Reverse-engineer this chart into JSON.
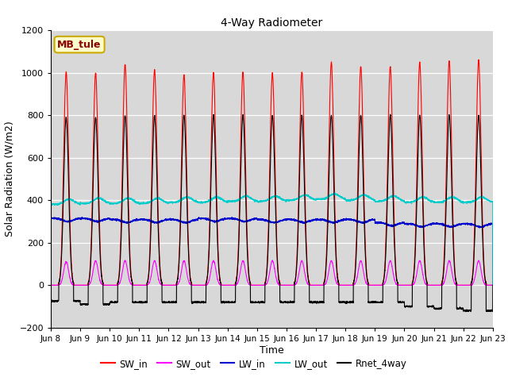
{
  "title": "4-Way Radiometer",
  "xlabel": "Time",
  "ylabel": "Solar Radiation (W/m2)",
  "ylim": [
    -200,
    1200
  ],
  "station_label": "MB_tule",
  "legend_entries": [
    "SW_in",
    "SW_out",
    "LW_in",
    "LW_out",
    "Rnet_4way"
  ],
  "line_colors": [
    "#ff0000",
    "#ff00ff",
    "#0000cc",
    "#00cccc",
    "#000000"
  ],
  "background_color": "#ffffff",
  "plot_bg_color": "#d8d8d8",
  "x_tick_labels": [
    "Jun 8",
    "Jun 9",
    "Jun 10",
    "Jun 11",
    "Jun 12",
    "Jun 13",
    "Jun 14",
    "Jun 15",
    "Jun 16",
    "Jun 17",
    "Jun 18",
    "Jun 19",
    "Jun 20",
    "Jun 21",
    "Jun 22",
    "Jun 23"
  ],
  "num_days": 15,
  "pts_per_day": 288,
  "SW_in_peaks": [
    1005,
    1000,
    1040,
    1015,
    990,
    1000,
    1005,
    1000,
    1005,
    1050,
    1030,
    1030,
    1050,
    1055,
    1060
  ],
  "SW_out_peaks": [
    110,
    115,
    115,
    115,
    115,
    115,
    115,
    115,
    115,
    115,
    115,
    115,
    115,
    115,
    115
  ],
  "LW_in_base": [
    315,
    315,
    310,
    310,
    310,
    315,
    315,
    310,
    310,
    310,
    310,
    295,
    290,
    290,
    290
  ],
  "LW_out_base": [
    380,
    385,
    385,
    385,
    390,
    390,
    395,
    395,
    400,
    405,
    400,
    395,
    390,
    390,
    390
  ],
  "Rnet_peak": [
    790,
    790,
    800,
    800,
    800,
    800,
    800,
    800,
    800,
    800,
    800,
    800,
    800,
    800,
    800
  ],
  "Rnet_night": [
    -75,
    -90,
    -80,
    -80,
    -80,
    -80,
    -80,
    -80,
    -80,
    -80,
    -80,
    -80,
    -100,
    -110,
    -120
  ]
}
